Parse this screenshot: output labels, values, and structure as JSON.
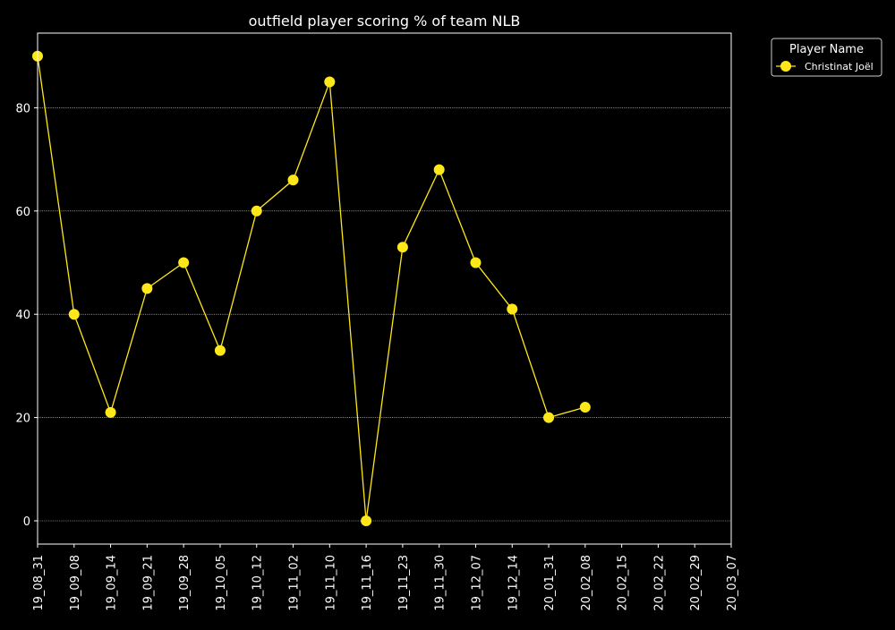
{
  "chart_data": {
    "type": "line",
    "title": "outfield player scoring % of team NLB",
    "xlabel": "",
    "ylabel": "",
    "categories": [
      "19_08_31",
      "19_09_08",
      "19_09_14",
      "19_09_21",
      "19_09_28",
      "19_10_05",
      "19_10_12",
      "19_11_02",
      "19_11_10",
      "19_11_16",
      "19_11_23",
      "19_11_30",
      "19_12_07",
      "19_12_14",
      "20_01_31",
      "20_02_08",
      "20_02_15",
      "20_02_22",
      "20_02_29",
      "20_03_07"
    ],
    "series": [
      {
        "name": "Christinat Joël",
        "values": [
          90,
          40,
          21,
          45,
          50,
          33,
          60,
          66,
          85,
          0,
          53,
          68,
          50,
          41,
          20,
          22,
          null,
          null,
          null,
          null
        ]
      }
    ],
    "yticks": [
      "0",
      "20",
      "40",
      "60",
      "80"
    ],
    "ylim": [
      -4.5,
      94.5
    ],
    "grid": "horizontal dotted",
    "legend": {
      "title": "Player Name",
      "placement": "outside upper right"
    },
    "colors": {
      "background": "#000000",
      "axes": "#ffffff",
      "text": "#ffffff",
      "grid": "#ffffff",
      "series": "#ffe81a",
      "marker_edge": "#ffe81a"
    }
  }
}
